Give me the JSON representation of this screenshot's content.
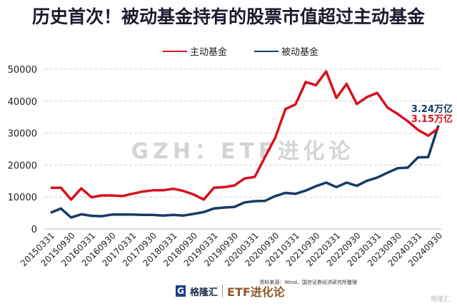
{
  "title": "历史首次！被动基金持有的股票市值超过主动基金",
  "source_note": "资料来源：Wind、国信证券经济研究所整理",
  "watermark": "GZH：ETF进化论",
  "footer": {
    "logo_text": "格隆汇",
    "brand": "ETF进化论",
    "corner_mark": "格隆汇"
  },
  "chart_data": {
    "type": "line",
    "title": "历史首次！被动基金持有的股票市值超过主动基金",
    "xlabel": "",
    "ylabel": "",
    "ylim": [
      0,
      50000
    ],
    "yticks": [
      0,
      10000,
      20000,
      30000,
      40000,
      50000
    ],
    "grid": "horizontal dashed",
    "legend": "top-center",
    "x": [
      "20150331",
      "20150630",
      "20150930",
      "20151231",
      "20160331",
      "20160630",
      "20160930",
      "20161231",
      "20170331",
      "20170630",
      "20170930",
      "20171231",
      "20180331",
      "20180630",
      "20180930",
      "20181231",
      "20190331",
      "20190630",
      "20190930",
      "20191231",
      "20200331",
      "20200630",
      "20200930",
      "20201231",
      "20210331",
      "20210630",
      "20210930",
      "20211231",
      "20220331",
      "20220630",
      "20220930",
      "20221231",
      "20230331",
      "20230630",
      "20230930",
      "20231231",
      "20240331",
      "20240630",
      "20240930"
    ],
    "xtick_labels": [
      "20150331",
      "20150930",
      "20160331",
      "20160930",
      "20170331",
      "20170930",
      "20180331",
      "20180930",
      "20190331",
      "20190930",
      "20200331",
      "20200930",
      "20210331",
      "20210930",
      "20220331",
      "20220930",
      "20230331",
      "20230930",
      "20240331",
      "20240930"
    ],
    "series": [
      {
        "name": "主动基金",
        "color": "#d6121d",
        "values": [
          12900,
          12900,
          9200,
          12700,
          9900,
          10500,
          10500,
          10300,
          11000,
          11700,
          12100,
          12100,
          12600,
          11900,
          10800,
          9200,
          12900,
          13100,
          13600,
          15800,
          16300,
          22500,
          28500,
          37500,
          39000,
          46000,
          45000,
          49300,
          41000,
          45400,
          39100,
          41300,
          42600,
          38000,
          36000,
          33700,
          31000,
          29200,
          31500
        ],
        "end_label": "3.15万亿"
      },
      {
        "name": "被动基金",
        "color": "#163b66",
        "values": [
          5100,
          6400,
          3600,
          4600,
          4100,
          4000,
          4500,
          4500,
          4500,
          4400,
          4400,
          4200,
          4400,
          4200,
          4700,
          5300,
          6400,
          6700,
          6900,
          8300,
          8700,
          8800,
          10300,
          11300,
          11000,
          12000,
          13400,
          14500,
          13100,
          14500,
          13500,
          15100,
          16100,
          17600,
          19000,
          19200,
          22400,
          22500,
          32400
        ],
        "end_label": "3.24万亿"
      }
    ]
  }
}
